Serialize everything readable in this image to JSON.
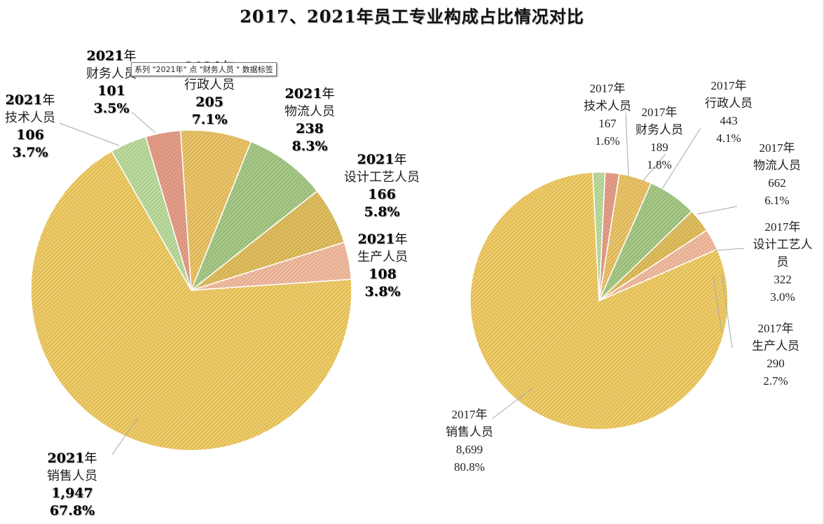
{
  "chart_data": [
    {
      "type": "pie",
      "name": "2021年",
      "categories": [
        "销售人员",
        "生产人员",
        "设计工艺人员",
        "物流人员",
        "行政人员",
        "财务人员",
        "技术人员"
      ],
      "values": [
        1947,
        108,
        166,
        238,
        205,
        101,
        106
      ],
      "value_labels": [
        "1,947",
        "108",
        "166",
        "238",
        "205",
        "101",
        "106"
      ],
      "percent_labels": [
        "67.8%",
        "3.8%",
        "5.8%",
        "8.3%",
        "7.1%",
        "3.5%",
        "3.7%"
      ],
      "colors": [
        "#f0cc66",
        "#f3bca0",
        "#e0be5e",
        "#a6c986",
        "#ebc468",
        "#e69e88",
        "#bcdc9e"
      ]
    },
    {
      "type": "pie",
      "name": "2017年",
      "categories": [
        "销售人员",
        "生产人员",
        "设计工艺人员",
        "物流人员",
        "行政人员",
        "财务人员",
        "技术人员"
      ],
      "values": [
        8699,
        290,
        322,
        662,
        443,
        189,
        167
      ],
      "value_labels": [
        "8,699",
        "290",
        "322",
        "662",
        "443",
        "189",
        "167"
      ],
      "percent_labels": [
        "80.8%",
        "2.7%",
        "3.0%",
        "6.1%",
        "4.1%",
        "1.8%",
        "1.6%"
      ],
      "colors": [
        "#f0cc66",
        "#f3bca0",
        "#e0be5e",
        "#a6c986",
        "#ebc468",
        "#e69e88",
        "#bcdc9e"
      ]
    }
  ],
  "title": "2017、2021年员工专业构成占比情况对比",
  "labels_2021": {
    "year_num": "2021",
    "year_unit": "年",
    "sales": "销售人员",
    "production": "生产人员",
    "design": "设计工艺人员",
    "logistics": "物流人员",
    "admin": "行政人员",
    "finance": "财务人员",
    "tech": "技术人员"
  },
  "labels_2017": {
    "year": "2017年",
    "sales": "销售人员",
    "production": "生产人员",
    "design_1": "设计工艺人",
    "design_2": "员",
    "logistics": "物流人员",
    "admin": "行政人员",
    "finance": "财务人员",
    "tech": "技术人员"
  },
  "tooltip": "系列 \"2021年\" 点 \"财务人员 \" 数据标签"
}
